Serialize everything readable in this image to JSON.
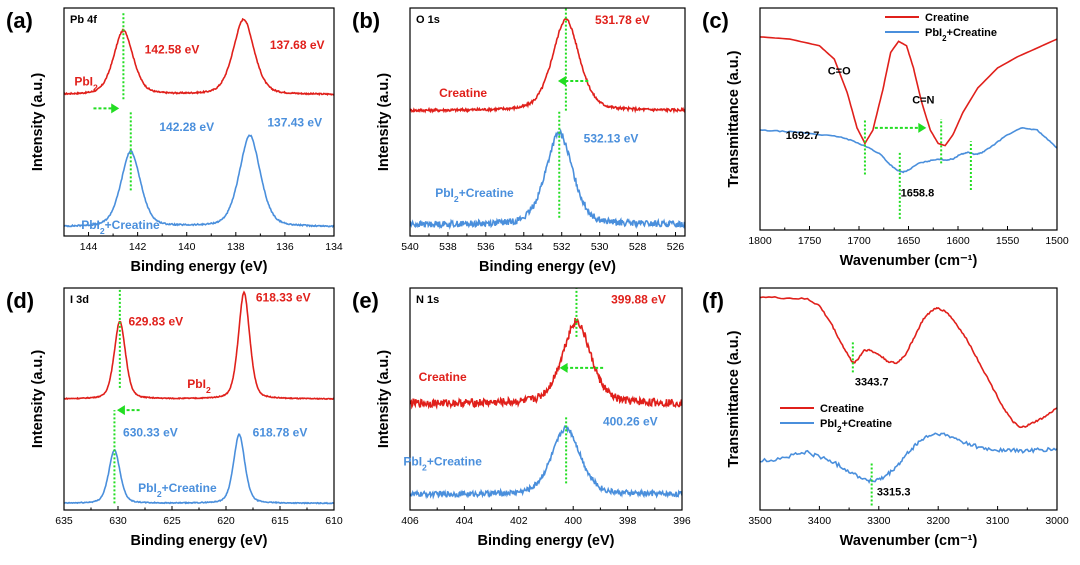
{
  "colors": {
    "red": "#e0201b",
    "blue": "#4a8fdc",
    "green": "#22dd22",
    "black": "#000000"
  },
  "chart_data": [
    {
      "id": "a",
      "type": "line",
      "panel_label": "(a)",
      "title": "Pb 4f",
      "xlabel": "Binding energy (eV)",
      "ylabel": "Intensity (a.u.)",
      "xlim": [
        145,
        134
      ],
      "ylim": [
        0,
        1
      ],
      "xticks": [
        "144",
        "142",
        "140",
        "138",
        "136",
        "134"
      ],
      "series": [
        {
          "name": "PbI₂",
          "color": "red",
          "baseline": 0.62,
          "noise": 0.003,
          "peaks": [
            {
              "center": 142.58,
              "height": 0.28,
              "width": 0.42
            },
            {
              "center": 137.68,
              "height": 0.33,
              "width": 0.45
            }
          ]
        },
        {
          "name": "PbI₂+Creatine",
          "color": "blue",
          "baseline": 0.04,
          "noise": 0.003,
          "peaks": [
            {
              "center": 142.28,
              "height": 0.33,
              "width": 0.42
            },
            {
              "center": 137.43,
              "height": 0.4,
              "width": 0.45
            }
          ]
        }
      ],
      "annotations": [
        {
          "text": "142.58 eV",
          "color": "red",
          "x": 140.6,
          "y": 0.8
        },
        {
          "text": "137.68 eV",
          "color": "red",
          "x": 135.5,
          "y": 0.82
        },
        {
          "text": "142.28 eV",
          "color": "blue",
          "x": 140.0,
          "y": 0.46
        },
        {
          "text": "137.43 eV",
          "color": "blue",
          "x": 135.6,
          "y": 0.48
        },
        {
          "text": "PbI₂",
          "color": "red",
          "x": 144.1,
          "y": 0.66
        },
        {
          "text": "PbI₂+Creatine",
          "color": "blue",
          "x": 142.7,
          "y": 0.03
        }
      ],
      "markers": [
        {
          "x": 142.58,
          "y0": 0.6,
          "y1": 0.98
        },
        {
          "x": 142.28,
          "y0": 0.2,
          "y1": 0.55
        }
      ],
      "arrows": [
        {
          "x1": 143.8,
          "x2": 142.75,
          "y": 0.56
        }
      ]
    },
    {
      "id": "b",
      "type": "line",
      "panel_label": "(b)",
      "title": "O 1s",
      "xlabel": "Binding energy (eV)",
      "ylabel": "Intensity (a.u.)",
      "xlim": [
        540,
        525.5
      ],
      "ylim": [
        0,
        1
      ],
      "xticks": [
        "540",
        "538",
        "536",
        "534",
        "532",
        "530",
        "528",
        "526"
      ],
      "series": [
        {
          "name": "Creatine",
          "color": "red",
          "baseline": 0.55,
          "noise": 0.006,
          "peaks": [
            {
              "center": 531.78,
              "height": 0.4,
              "width": 0.75
            }
          ]
        },
        {
          "name": "PbI₂+Creatine",
          "color": "blue",
          "baseline": 0.05,
          "noise": 0.014,
          "peaks": [
            {
              "center": 532.13,
              "height": 0.4,
              "width": 0.75
            }
          ]
        }
      ],
      "annotations": [
        {
          "text": "531.78 eV",
          "color": "red",
          "x": 528.8,
          "y": 0.93
        },
        {
          "text": "532.13 eV",
          "color": "blue",
          "x": 529.4,
          "y": 0.41
        },
        {
          "text": "Creatine",
          "color": "red",
          "x": 537.2,
          "y": 0.61
        },
        {
          "text": "PbI₂+Creatine",
          "color": "blue",
          "x": 536.6,
          "y": 0.17
        }
      ],
      "markers": [
        {
          "x": 531.78,
          "y0": 0.55,
          "y1": 1.0
        },
        {
          "x": 532.13,
          "y0": 0.08,
          "y1": 0.55
        }
      ],
      "arrows": [
        {
          "x1": 530.6,
          "x2": 532.2,
          "y": 0.68
        }
      ]
    },
    {
      "id": "c",
      "type": "line",
      "panel_label": "(c)",
      "xlabel": "Wavenumber (cm⁻¹)",
      "ylabel": "Transmittance (a.u.)",
      "xlim": [
        1800,
        1500
      ],
      "ylim": [
        0,
        1
      ],
      "xticks": [
        "1800",
        "1750",
        "1700",
        "1650",
        "1600",
        "1550",
        "1500"
      ],
      "series": [
        {
          "name": "Creatine",
          "color": "red",
          "noise": 0.0,
          "points": [
            [
              1800,
              0.87
            ],
            [
              1770,
              0.86
            ],
            [
              1740,
              0.83
            ],
            [
              1725,
              0.77
            ],
            [
              1712,
              0.62
            ],
            [
              1702,
              0.46
            ],
            [
              1694,
              0.39
            ],
            [
              1686,
              0.45
            ],
            [
              1676,
              0.63
            ],
            [
              1668,
              0.8
            ],
            [
              1660,
              0.85
            ],
            [
              1652,
              0.83
            ],
            [
              1645,
              0.73
            ],
            [
              1637,
              0.58
            ],
            [
              1628,
              0.45
            ],
            [
              1620,
              0.39
            ],
            [
              1613,
              0.38
            ],
            [
              1605,
              0.43
            ],
            [
              1595,
              0.53
            ],
            [
              1580,
              0.64
            ],
            [
              1560,
              0.73
            ],
            [
              1540,
              0.78
            ],
            [
              1520,
              0.82
            ],
            [
              1500,
              0.86
            ]
          ]
        },
        {
          "name": "PbI₂+Creatine",
          "color": "blue",
          "noise": 0.002,
          "points": [
            [
              1800,
              0.45
            ],
            [
              1780,
              0.445
            ],
            [
              1760,
              0.44
            ],
            [
              1740,
              0.43
            ],
            [
              1720,
              0.42
            ],
            [
              1705,
              0.4
            ],
            [
              1690,
              0.37
            ],
            [
              1678,
              0.34
            ],
            [
              1670,
              0.3
            ],
            [
              1662,
              0.27
            ],
            [
              1656,
              0.26
            ],
            [
              1650,
              0.27
            ],
            [
              1640,
              0.3
            ],
            [
              1630,
              0.31
            ],
            [
              1620,
              0.32
            ],
            [
              1612,
              0.315
            ],
            [
              1605,
              0.32
            ],
            [
              1598,
              0.34
            ],
            [
              1590,
              0.35
            ],
            [
              1582,
              0.34
            ],
            [
              1575,
              0.35
            ],
            [
              1565,
              0.38
            ],
            [
              1550,
              0.43
            ],
            [
              1535,
              0.46
            ],
            [
              1520,
              0.45
            ],
            [
              1510,
              0.41
            ],
            [
              1500,
              0.37
            ]
          ]
        }
      ],
      "legend": [
        {
          "label": "Creatine",
          "color": "red"
        },
        {
          "label": "PbI₂+Creatine",
          "color": "blue"
        }
      ],
      "annotations": [
        {
          "text": "C=O",
          "color": "black",
          "x": 1720,
          "y": 0.7
        },
        {
          "text": "C=N",
          "color": "black",
          "x": 1635,
          "y": 0.57
        },
        {
          "text": "1692.7",
          "color": "black",
          "x": 1757,
          "y": 0.41
        },
        {
          "text": "1658.8",
          "color": "black",
          "x": 1641,
          "y": 0.15
        }
      ],
      "markers": [
        {
          "x": 1694,
          "y0": 0.25,
          "y1": 0.5
        },
        {
          "x": 1617,
          "y0": 0.3,
          "y1": 0.5
        },
        {
          "x": 1658.8,
          "y0": 0.05,
          "y1": 0.35
        },
        {
          "x": 1587,
          "y0": 0.18,
          "y1": 0.4
        }
      ],
      "arrows": [
        {
          "x1": 1684,
          "x2": 1632,
          "y": 0.46
        }
      ]
    },
    {
      "id": "d",
      "type": "line",
      "panel_label": "(d)",
      "title": "I 3d",
      "xlabel": "Binding energy (eV)",
      "ylabel": "Intensity (a.u.)",
      "xlim": [
        635,
        610
      ],
      "ylim": [
        0,
        1
      ],
      "xticks": [
        "635",
        "630",
        "625",
        "620",
        "615",
        "610"
      ],
      "series": [
        {
          "name": "PbI₂",
          "color": "red",
          "baseline": 0.5,
          "noise": 0.002,
          "peaks": [
            {
              "center": 629.83,
              "height": 0.35,
              "width": 0.55
            },
            {
              "center": 618.33,
              "height": 0.48,
              "width": 0.55
            }
          ]
        },
        {
          "name": "PbI₂+Creatine",
          "color": "blue",
          "baseline": 0.03,
          "noise": 0.002,
          "peaks": [
            {
              "center": 630.33,
              "height": 0.24,
              "width": 0.55
            },
            {
              "center": 618.78,
              "height": 0.31,
              "width": 0.55
            }
          ]
        }
      ],
      "annotations": [
        {
          "text": "629.83 eV",
          "color": "red",
          "x": 626.5,
          "y": 0.83
        },
        {
          "text": "618.33 eV",
          "color": "red",
          "x": 614.7,
          "y": 0.94
        },
        {
          "text": "630.33 eV",
          "color": "blue",
          "x": 627.0,
          "y": 0.33
        },
        {
          "text": "618.78 eV",
          "color": "blue",
          "x": 615.0,
          "y": 0.33
        },
        {
          "text": "PbI₂",
          "color": "red",
          "x": 622.5,
          "y": 0.55
        },
        {
          "text": "PbI₂+Creatine",
          "color": "blue",
          "x": 624.5,
          "y": 0.08
        }
      ],
      "markers": [
        {
          "x": 629.83,
          "y0": 0.55,
          "y1": 1.0
        },
        {
          "x": 630.33,
          "y0": 0.03,
          "y1": 0.45
        }
      ],
      "arrows": [
        {
          "x1": 628.0,
          "x2": 630.1,
          "y": 0.45
        }
      ]
    },
    {
      "id": "e",
      "type": "line",
      "panel_label": "(e)",
      "title": "N 1s",
      "xlabel": "Binding energy (eV)",
      "ylabel": "Intensity (a.u.)",
      "xlim": [
        406,
        396
      ],
      "ylim": [
        0,
        1
      ],
      "xticks": [
        "406",
        "404",
        "402",
        "400",
        "398",
        "396"
      ],
      "series": [
        {
          "name": "Creatine",
          "color": "red",
          "baseline": 0.48,
          "noise": 0.018,
          "peaks": [
            {
              "center": 399.88,
              "height": 0.37,
              "width": 0.55
            }
          ]
        },
        {
          "name": "PbI₂+Creatine",
          "color": "blue",
          "baseline": 0.07,
          "noise": 0.012,
          "peaks": [
            {
              "center": 400.26,
              "height": 0.3,
              "width": 0.55
            }
          ]
        }
      ],
      "annotations": [
        {
          "text": "399.88 eV",
          "color": "red",
          "x": 397.6,
          "y": 0.93
        },
        {
          "text": "400.26 eV",
          "color": "blue",
          "x": 397.9,
          "y": 0.38
        },
        {
          "text": "Creatine",
          "color": "red",
          "x": 404.8,
          "y": 0.58
        },
        {
          "text": "PbI₂+Creatine",
          "color": "blue",
          "x": 404.8,
          "y": 0.2
        }
      ],
      "markers": [
        {
          "x": 399.88,
          "y0": 0.78,
          "y1": 1.0
        },
        {
          "x": 400.26,
          "y0": 0.12,
          "y1": 0.42
        }
      ],
      "arrows": [
        {
          "x1": 398.9,
          "x2": 400.5,
          "y": 0.64
        }
      ]
    },
    {
      "id": "f",
      "type": "line",
      "panel_label": "(f)",
      "xlabel": "Wavenumber (cm⁻¹)",
      "ylabel": "Transmittance (a.u.)",
      "xlim": [
        3500,
        3000
      ],
      "ylim": [
        0,
        1
      ],
      "xticks": [
        "3500",
        "3400",
        "3300",
        "3200",
        "3100",
        "3000"
      ],
      "series": [
        {
          "name": "Creatine",
          "color": "red",
          "noise": 0.004,
          "points": [
            [
              3500,
              0.96
            ],
            [
              3460,
              0.955
            ],
            [
              3420,
              0.95
            ],
            [
              3400,
              0.92
            ],
            [
              3380,
              0.84
            ],
            [
              3365,
              0.76
            ],
            [
              3350,
              0.69
            ],
            [
              3343,
              0.66
            ],
            [
              3335,
              0.68
            ],
            [
              3325,
              0.72
            ],
            [
              3315,
              0.72
            ],
            [
              3300,
              0.7
            ],
            [
              3285,
              0.67
            ],
            [
              3270,
              0.66
            ],
            [
              3255,
              0.7
            ],
            [
              3240,
              0.78
            ],
            [
              3225,
              0.86
            ],
            [
              3210,
              0.9
            ],
            [
              3200,
              0.91
            ],
            [
              3185,
              0.89
            ],
            [
              3170,
              0.84
            ],
            [
              3150,
              0.76
            ],
            [
              3130,
              0.66
            ],
            [
              3110,
              0.56
            ],
            [
              3090,
              0.46
            ],
            [
              3075,
              0.4
            ],
            [
              3062,
              0.37
            ],
            [
              3050,
              0.38
            ],
            [
              3035,
              0.4
            ],
            [
              3020,
              0.42
            ],
            [
              3000,
              0.46
            ]
          ]
        },
        {
          "name": "PbI₂+Creatine",
          "color": "blue",
          "noise": 0.009,
          "points": [
            [
              3500,
              0.22
            ],
            [
              3470,
              0.23
            ],
            [
              3440,
              0.25
            ],
            [
              3420,
              0.26
            ],
            [
              3400,
              0.24
            ],
            [
              3380,
              0.22
            ],
            [
              3360,
              0.19
            ],
            [
              3340,
              0.16
            ],
            [
              3320,
              0.135
            ],
            [
              3310,
              0.13
            ],
            [
              3295,
              0.14
            ],
            [
              3280,
              0.17
            ],
            [
              3265,
              0.21
            ],
            [
              3250,
              0.26
            ],
            [
              3235,
              0.3
            ],
            [
              3220,
              0.33
            ],
            [
              3200,
              0.345
            ],
            [
              3180,
              0.33
            ],
            [
              3160,
              0.31
            ],
            [
              3140,
              0.29
            ],
            [
              3120,
              0.275
            ],
            [
              3100,
              0.27
            ],
            [
              3080,
              0.27
            ],
            [
              3060,
              0.265
            ],
            [
              3040,
              0.27
            ],
            [
              3020,
              0.27
            ],
            [
              3000,
              0.275
            ]
          ]
        }
      ],
      "legend": [
        {
          "label": "Creatine",
          "color": "red"
        },
        {
          "label": "PbI₂+Creatine",
          "color": "blue"
        }
      ],
      "annotations": [
        {
          "text": "3343.7",
          "color": "black",
          "x": 3312,
          "y": 0.56
        },
        {
          "text": "3315.3",
          "color": "black",
          "x": 3275,
          "y": 0.065
        }
      ],
      "markers": [
        {
          "x": 3343.7,
          "y0": 0.62,
          "y1": 0.76
        },
        {
          "x": 3312,
          "y0": 0.02,
          "y1": 0.21
        }
      ],
      "arrows": []
    }
  ]
}
